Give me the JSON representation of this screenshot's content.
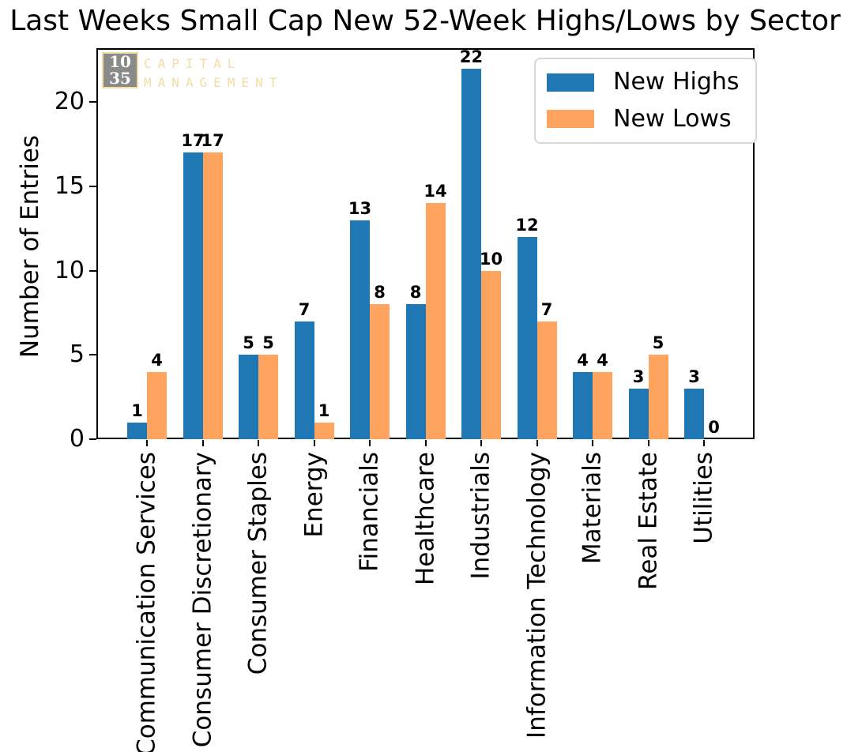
{
  "chart_data": {
    "type": "bar",
    "title": "Last Weeks Small Cap New 52-Week Highs/Lows by Sector",
    "xlabel": "",
    "ylabel": "Number of Entries",
    "categories": [
      "Communication Services",
      "Consumer Discretionary",
      "Consumer Staples",
      "Energy",
      "Financials",
      "Healthcare",
      "Industrials",
      "Information Technology",
      "Materials",
      "Real Estate",
      "Utilities"
    ],
    "series": [
      {
        "name": "New Highs",
        "color": "#1f77b4",
        "values": [
          1,
          17,
          5,
          7,
          13,
          8,
          22,
          12,
          4,
          3,
          3
        ]
      },
      {
        "name": "New Lows",
        "color": "#ffa45e",
        "values": [
          4,
          17,
          5,
          1,
          8,
          14,
          10,
          7,
          4,
          5,
          0
        ]
      }
    ],
    "yticks": [
      0,
      5,
      10,
      15,
      20
    ],
    "ylim": [
      0,
      23.2
    ],
    "bar_value_labels": true,
    "legend_position": "upper right",
    "grid": false
  },
  "watermark": {
    "box_line1": "10",
    "box_line2": "35",
    "name_line1": "CAPITAL",
    "name_line2": "MANAGEMENT",
    "box_color": "#8a8a8a",
    "accent_color": "#f2dda4"
  },
  "colors": {
    "background": "#ffffff",
    "axis": "#000000",
    "legend_border": "#d8d8d8"
  }
}
